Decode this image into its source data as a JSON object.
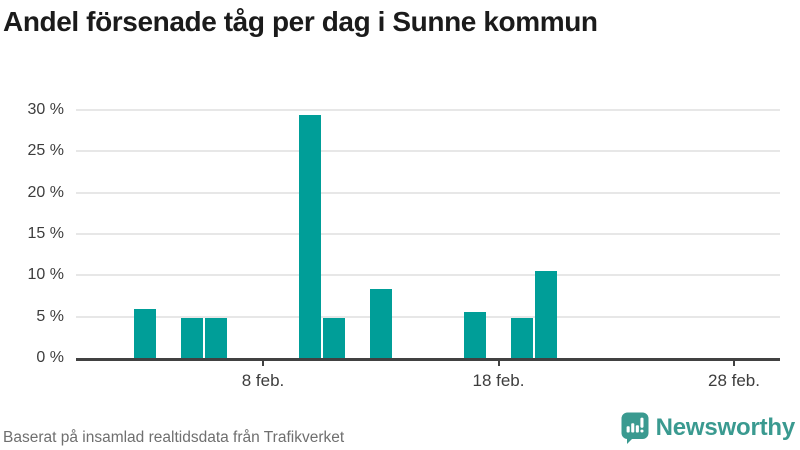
{
  "title": "Andel försenade tåg per dag i Sunne kommun",
  "footer": {
    "source": "Baserat på insamlad realtidsdata från Trafikverket",
    "brand": "Newsworthy"
  },
  "colors": {
    "bar": "#009e98",
    "axis": "#414141",
    "grid": "#e7e7e7",
    "tick_label": "#3d3d3d",
    "title": "#1b1b1b",
    "source_text": "#6f6f6f",
    "brand_teal": "#3a9a90"
  },
  "chart_data": {
    "type": "bar",
    "title": "Andel försenade tåg per dag i Sunne kommun",
    "xlabel": "",
    "ylabel": "",
    "categories": [
      1,
      2,
      3,
      4,
      5,
      6,
      7,
      8,
      9,
      10,
      11,
      12,
      13,
      14,
      15,
      16,
      17,
      18,
      19,
      20,
      21,
      22,
      23,
      24,
      25,
      26,
      27,
      28
    ],
    "values": [
      0,
      0,
      5.9,
      0,
      4.8,
      4.8,
      0,
      0,
      0,
      29.4,
      4.8,
      0,
      8.3,
      0,
      0,
      0,
      5.6,
      0,
      4.8,
      10.5,
      0,
      0,
      0,
      0,
      0,
      0,
      0,
      0
    ],
    "value_unit": "%",
    "ylim": [
      0,
      30
    ],
    "ytick_values": [
      0,
      5,
      10,
      15,
      20,
      25,
      30
    ],
    "ytick_labels": [
      "0 %",
      "5 %",
      "10 %",
      "15 %",
      "20 %",
      "25 %",
      "30 %"
    ],
    "xticks": [
      {
        "day": 8,
        "label": "8 feb."
      },
      {
        "day": 18,
        "label": "18 feb."
      },
      {
        "day": 28,
        "label": "28 feb."
      }
    ],
    "grid": "horizontal",
    "legend": "none"
  }
}
